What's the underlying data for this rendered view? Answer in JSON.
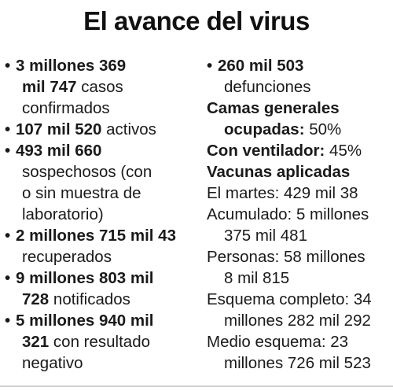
{
  "title": "El avance del virus",
  "left": {
    "confirmed": {
      "bold1": "3 millones 369",
      "bold2": "mil 747",
      "text2": " casos",
      "text3": "confirmados"
    },
    "active": {
      "bold": "107 mil 520",
      "text": " activos"
    },
    "suspected": {
      "bold": "493 mil 660",
      "text2": "sospechosos (con",
      "text3": "o sin muestra de",
      "text4": "laboratorio)"
    },
    "recovered": {
      "bold": "2 millones 715 mil 43",
      "text2": "recuperados"
    },
    "notified": {
      "bold1": "9 millones 803 mil",
      "bold2": "728",
      "text2": " notificados"
    },
    "negative": {
      "bold1": "5 millones 940 mil",
      "bold2": "321",
      "text2": " con resultado",
      "text3": "negativo"
    }
  },
  "right": {
    "deaths": {
      "bold": "260 mil 503",
      "text2": "defunciones"
    },
    "beds": {
      "bold1": "Camas generales",
      "bold2": "ocupadas:",
      "value": " 50%"
    },
    "ventilator": {
      "bold": "Con ventilador:",
      "value": " 45%"
    },
    "vaccines": {
      "heading": "Vacunas aplicadas",
      "tuesday": "El martes: 429 mil 38",
      "accum1": "Acumulado: 5 millones",
      "accum2": "375 mil 481",
      "people1": "Personas: 58 millones",
      "people2": "8 mil 815",
      "full1": "Esquema completo: 34",
      "full2": "millones 282 mil 292",
      "half1": "Medio esquema: 23",
      "half2": "millones 726 mil 523"
    }
  },
  "bullet_char": "•"
}
